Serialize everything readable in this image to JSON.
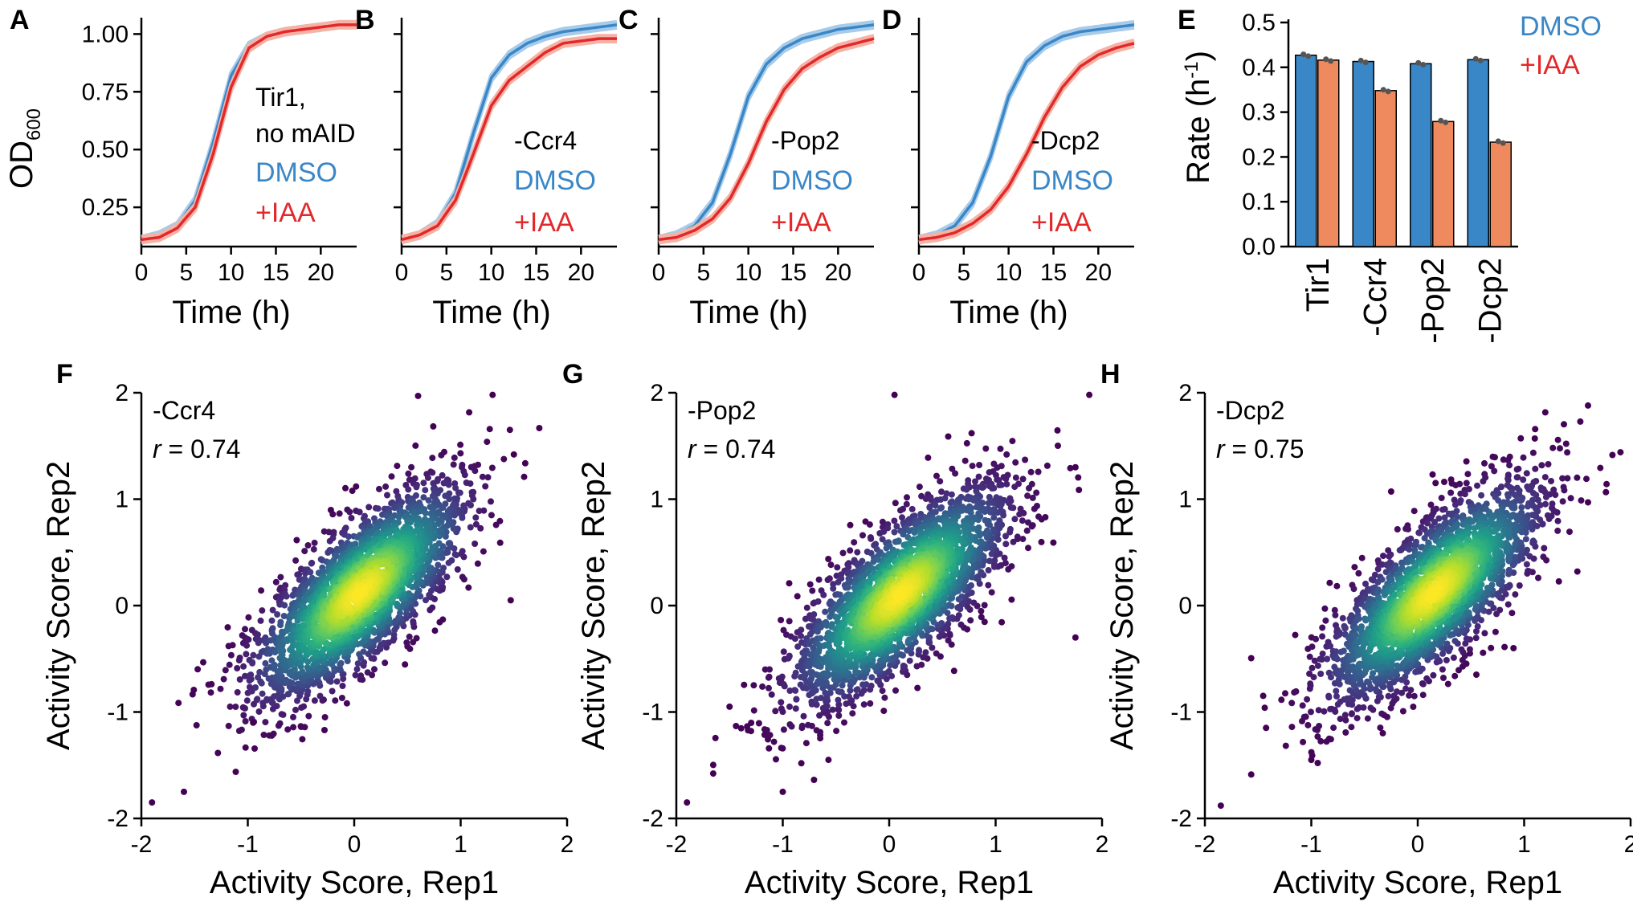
{
  "colors": {
    "dmso": "#3a87c8",
    "iaa_line": "#e3282b",
    "iaa_bar": "#ee8a5d",
    "dmso_band": "#a7cbe9",
    "iaa_band": "#f5b3a5",
    "point": "#555555"
  },
  "growth_panels": [
    {
      "letter": "A",
      "annotation": [
        "Tir1,",
        "no mAID"
      ],
      "dmso_label": "DMSO",
      "iaa_label": "+IAA",
      "y_title": "OD",
      "y_title_sub": "600",
      "x_title": "Time (h)",
      "x_ticks": [
        "0",
        "5",
        "10",
        "15",
        "20"
      ],
      "y_ticks": [
        "0.25",
        "0.50",
        "0.75",
        "1.00"
      ]
    },
    {
      "letter": "B",
      "annotation": [
        "-Ccr4"
      ],
      "dmso_label": "DMSO",
      "iaa_label": "+IAA",
      "x_title": "Time (h)",
      "x_ticks": [
        "0",
        "5",
        "10",
        "15",
        "20"
      ]
    },
    {
      "letter": "C",
      "annotation": [
        "-Pop2"
      ],
      "dmso_label": "DMSO",
      "iaa_label": "+IAA",
      "x_title": "Time (h)",
      "x_ticks": [
        "0",
        "5",
        "10",
        "15",
        "20"
      ]
    },
    {
      "letter": "D",
      "annotation": [
        "-Dcp2"
      ],
      "dmso_label": "DMSO",
      "iaa_label": "+IAA",
      "x_title": "Time (h)",
      "x_ticks": [
        "0",
        "5",
        "10",
        "15",
        "20"
      ]
    }
  ],
  "bar_panel": {
    "letter": "E",
    "y_title": "Rate (h",
    "y_title_sup": "-1",
    "y_title_end": ")",
    "legend": [
      "DMSO",
      "+IAA"
    ],
    "y_ticks": [
      "0.0",
      "0.1",
      "0.2",
      "0.3",
      "0.4",
      "0.5"
    ],
    "categories": [
      "Tir1",
      "-Ccr4",
      "-Pop2",
      "-Dcp2"
    ]
  },
  "scatter_panels": [
    {
      "letter": "F",
      "label": "-Ccr4",
      "r_label": "r",
      "r_value": " = 0.74",
      "x_title": "Activity Score, Rep1",
      "y_title": "Activity Score, Rep2",
      "ticks": [
        "-2",
        "-1",
        "0",
        "1",
        "2"
      ]
    },
    {
      "letter": "G",
      "label": "-Pop2",
      "r_label": "r",
      "r_value": " = 0.74",
      "x_title": "Activity Score, Rep1",
      "y_title": "Activity Score, Rep2",
      "ticks": [
        "-2",
        "-1",
        "0",
        "1",
        "2"
      ]
    },
    {
      "letter": "H",
      "label": "-Dcp2",
      "r_label": "r",
      "r_value": " = 0.75",
      "x_title": "Activity Score, Rep1",
      "y_title": "Activity Score, Rep2",
      "ticks": [
        "-2",
        "-1",
        "0",
        "1",
        "2"
      ]
    }
  ],
  "chart_data": [
    {
      "panel": "A",
      "type": "line",
      "xlabel": "Time (h)",
      "ylabel": "OD600",
      "xlim": [
        0,
        24
      ],
      "ylim": [
        0.08,
        1.05
      ],
      "x": [
        0,
        2,
        4,
        6,
        8,
        10,
        12,
        14,
        16,
        18,
        20,
        22,
        24
      ],
      "series": [
        {
          "name": "DMSO",
          "values": [
            0.11,
            0.13,
            0.17,
            0.28,
            0.53,
            0.82,
            0.95,
            0.99,
            1.01,
            1.02,
            1.03,
            1.04,
            1.04
          ]
        },
        {
          "name": "+IAA",
          "values": [
            0.11,
            0.12,
            0.16,
            0.25,
            0.48,
            0.77,
            0.94,
            0.99,
            1.01,
            1.02,
            1.03,
            1.04,
            1.04
          ]
        }
      ]
    },
    {
      "panel": "B",
      "type": "line",
      "xlabel": "Time (h)",
      "xlim": [
        0,
        24
      ],
      "ylim": [
        0.08,
        1.05
      ],
      "x": [
        0,
        2,
        4,
        6,
        8,
        10,
        12,
        14,
        16,
        18,
        20,
        22,
        24
      ],
      "series": [
        {
          "name": "DMSO",
          "values": [
            0.11,
            0.13,
            0.18,
            0.31,
            0.57,
            0.81,
            0.91,
            0.96,
            0.99,
            1.01,
            1.02,
            1.03,
            1.04
          ]
        },
        {
          "name": "+IAA",
          "values": [
            0.11,
            0.13,
            0.17,
            0.28,
            0.48,
            0.69,
            0.8,
            0.86,
            0.92,
            0.96,
            0.97,
            0.98,
            0.98
          ]
        }
      ]
    },
    {
      "panel": "C",
      "type": "line",
      "xlabel": "Time (h)",
      "xlim": [
        0,
        24
      ],
      "ylim": [
        0.08,
        1.05
      ],
      "x": [
        0,
        2,
        4,
        6,
        8,
        10,
        12,
        14,
        16,
        18,
        20,
        22,
        24
      ],
      "series": [
        {
          "name": "DMSO",
          "values": [
            0.11,
            0.13,
            0.17,
            0.27,
            0.48,
            0.73,
            0.87,
            0.94,
            0.98,
            1.0,
            1.02,
            1.03,
            1.04
          ]
        },
        {
          "name": "+IAA",
          "values": [
            0.11,
            0.12,
            0.15,
            0.2,
            0.29,
            0.44,
            0.62,
            0.76,
            0.85,
            0.9,
            0.94,
            0.96,
            0.98
          ]
        }
      ]
    },
    {
      "panel": "D",
      "type": "line",
      "xlabel": "Time (h)",
      "xlim": [
        0,
        24
      ],
      "ylim": [
        0.08,
        1.05
      ],
      "x": [
        0,
        2,
        4,
        6,
        8,
        10,
        12,
        14,
        16,
        18,
        20,
        22,
        24
      ],
      "series": [
        {
          "name": "DMSO",
          "values": [
            0.11,
            0.13,
            0.17,
            0.27,
            0.47,
            0.73,
            0.88,
            0.95,
            0.99,
            1.01,
            1.02,
            1.03,
            1.04
          ]
        },
        {
          "name": "+IAA",
          "values": [
            0.11,
            0.12,
            0.14,
            0.18,
            0.24,
            0.34,
            0.48,
            0.64,
            0.77,
            0.86,
            0.91,
            0.94,
            0.96
          ]
        }
      ]
    },
    {
      "panel": "E",
      "type": "bar",
      "ylabel": "Rate (h-1)",
      "ylim": [
        0,
        0.5
      ],
      "categories": [
        "Tir1",
        "-Ccr4",
        "-Pop2",
        "-Dcp2"
      ],
      "series": [
        {
          "name": "DMSO",
          "values": [
            0.427,
            0.413,
            0.408,
            0.417
          ]
        },
        {
          "name": "+IAA",
          "values": [
            0.416,
            0.348,
            0.279,
            0.233
          ]
        }
      ]
    },
    {
      "panel": "F",
      "type": "scatter",
      "xlabel": "Activity Score, Rep1",
      "ylabel": "Activity Score, Rep2",
      "xlim": [
        -2,
        2
      ],
      "ylim": [
        -2,
        2
      ],
      "annotation": "-Ccr4, r = 0.74",
      "pearson_r": 0.74,
      "density_center": [
        0.05,
        0.12
      ],
      "outliers": [
        [
          1.3,
          1.98
        ],
        [
          0.6,
          1.97
        ],
        [
          1.5,
          1.42
        ],
        [
          -1.9,
          -1.85
        ],
        [
          -1.6,
          -1.75
        ],
        [
          1.47,
          0.05
        ],
        [
          -0.95,
          -1.1
        ]
      ]
    },
    {
      "panel": "G",
      "type": "scatter",
      "xlabel": "Activity Score, Rep1",
      "ylabel": "Activity Score, Rep2",
      "xlim": [
        -2,
        2
      ],
      "ylim": [
        -2,
        2
      ],
      "annotation": "-Pop2, r = 0.74",
      "pearson_r": 0.74,
      "density_center": [
        0.1,
        0.1
      ],
      "outliers": [
        [
          0.05,
          1.98
        ],
        [
          1.88,
          1.98
        ],
        [
          1.75,
          1.3
        ],
        [
          -1.9,
          -1.85
        ],
        [
          -1.0,
          -1.75
        ],
        [
          1.75,
          -0.3
        ],
        [
          -1.5,
          -0.95
        ]
      ]
    },
    {
      "panel": "H",
      "type": "scatter",
      "xlabel": "Activity Score, Rep1",
      "ylabel": "Activity Score, Rep2",
      "xlim": [
        -2,
        2
      ],
      "ylim": [
        -2,
        2
      ],
      "annotation": "-Dcp2, r = 0.75",
      "pearson_r": 0.75,
      "density_center": [
        0.15,
        0.12
      ],
      "outliers": [
        [
          1.6,
          1.88
        ],
        [
          1.1,
          1.57
        ],
        [
          1.6,
          0.97
        ],
        [
          -1.85,
          -1.88
        ],
        [
          -1.0,
          -1.45
        ],
        [
          1.5,
          0.32
        ],
        [
          0.9,
          -0.4
        ]
      ]
    }
  ]
}
